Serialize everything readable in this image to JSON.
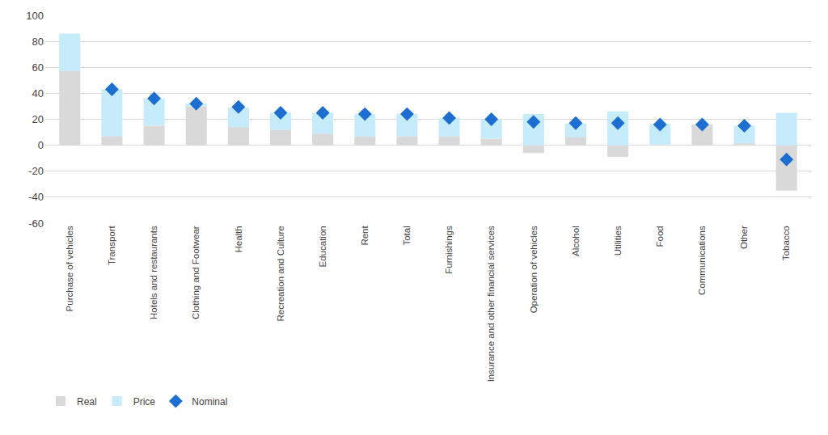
{
  "chart_data": {
    "type": "bar",
    "stacked": true,
    "grid": true,
    "legend": "bottom left",
    "categories": [
      "Purchase of vehicles",
      "Transport",
      "Hotels and restaurants",
      "Clothing and Footwear",
      "Health",
      "Recreation and Culture",
      "Education",
      "Rent",
      "Total",
      "Furnishings",
      "Insurance and other financial services",
      "Operation of vehicles",
      "Alcohol",
      "Utilities",
      "Food",
      "Communications",
      "Other",
      "Tobacco"
    ],
    "series": [
      {
        "name": "Real",
        "type": "bar",
        "color": "#d9d9d9",
        "values": [
          57,
          7,
          15,
          30,
          14,
          12,
          9,
          7,
          7,
          7,
          5,
          -6,
          6,
          -9,
          0.5,
          16,
          1.5,
          -35
        ]
      },
      {
        "name": "Price",
        "type": "bar",
        "color": "#c6ebfa",
        "values": [
          29,
          36,
          21,
          2,
          15,
          13,
          16,
          17,
          17,
          14,
          15,
          24,
          11,
          26,
          16,
          0,
          13.5,
          25
        ]
      },
      {
        "name": "Nominal",
        "type": "scatter",
        "marker": "diamond",
        "color": "#1c6fd0",
        "values": [
          null,
          43,
          36,
          32,
          29.5,
          25,
          25,
          24,
          24,
          21,
          20,
          18,
          17,
          17,
          16,
          16,
          15,
          -11
        ]
      }
    ],
    "ylim": [
      -60,
      100
    ],
    "yticks": [
      -60,
      -40,
      -20,
      0,
      20,
      40,
      60,
      80,
      100
    ]
  }
}
